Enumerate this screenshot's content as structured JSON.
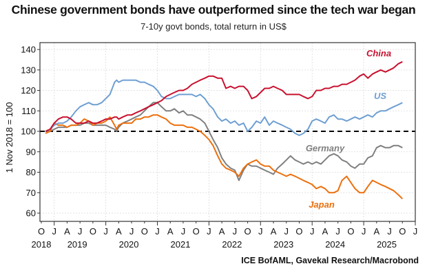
{
  "chart_data": {
    "type": "line",
    "title": "Chinese government bonds have outperformed since the tech war began",
    "subtitle": "7-10y govt bonds, total return in US$",
    "ylabel": "1 Nov 2018 = 100",
    "xlabel": "",
    "source": "ICE BofAML, Gavekal Research/Macrobond",
    "ylim": [
      57,
      143
    ],
    "yticks": [
      60,
      70,
      80,
      90,
      100,
      110,
      120,
      130,
      140
    ],
    "xlim": [
      2018.75,
      2026.0
    ],
    "grid": true,
    "reference_line": {
      "y": 100,
      "style": "dashed",
      "color": "#000000"
    },
    "x_month_ticks": [
      {
        "t": 2018.75,
        "label": "O"
      },
      {
        "t": 2019.0,
        "label": "J"
      },
      {
        "t": 2019.25,
        "label": "A"
      },
      {
        "t": 2019.5,
        "label": "J"
      },
      {
        "t": 2019.75,
        "label": "O"
      },
      {
        "t": 2020.0,
        "label": "J"
      },
      {
        "t": 2020.25,
        "label": "A"
      },
      {
        "t": 2020.5,
        "label": "J"
      },
      {
        "t": 2020.75,
        "label": "O"
      },
      {
        "t": 2021.0,
        "label": "J"
      },
      {
        "t": 2021.25,
        "label": "A"
      },
      {
        "t": 2021.5,
        "label": "J"
      },
      {
        "t": 2021.75,
        "label": "O"
      },
      {
        "t": 2022.0,
        "label": "J"
      },
      {
        "t": 2022.25,
        "label": "A"
      },
      {
        "t": 2022.5,
        "label": "J"
      },
      {
        "t": 2022.75,
        "label": "O"
      },
      {
        "t": 2023.0,
        "label": "J"
      },
      {
        "t": 2023.25,
        "label": "A"
      },
      {
        "t": 2023.5,
        "label": "J"
      },
      {
        "t": 2023.75,
        "label": "O"
      },
      {
        "t": 2024.0,
        "label": "J"
      },
      {
        "t": 2024.25,
        "label": "A"
      },
      {
        "t": 2024.5,
        "label": "J"
      },
      {
        "t": 2024.75,
        "label": "O"
      },
      {
        "t": 2025.0,
        "label": "J"
      },
      {
        "t": 2025.25,
        "label": "A"
      },
      {
        "t": 2025.5,
        "label": "J"
      },
      {
        "t": 2025.75,
        "label": "O"
      },
      {
        "t": 2026.0,
        "label": "J"
      }
    ],
    "x_year_labels": [
      {
        "t": 2018.75,
        "label": "2018"
      },
      {
        "t": 2019.5,
        "label": "2019"
      },
      {
        "t": 2020.5,
        "label": "2020"
      },
      {
        "t": 2021.5,
        "label": "2021"
      },
      {
        "t": 2022.5,
        "label": "2022"
      },
      {
        "t": 2023.5,
        "label": "2023"
      },
      {
        "t": 2024.5,
        "label": "2024"
      },
      {
        "t": 2025.5,
        "label": "2025"
      }
    ],
    "x": [
      2018.83,
      2018.92,
      2019.0,
      2019.08,
      2019.17,
      2019.25,
      2019.33,
      2019.42,
      2019.5,
      2019.58,
      2019.67,
      2019.75,
      2019.83,
      2019.92,
      2020.0,
      2020.08,
      2020.17,
      2020.21,
      2020.25,
      2020.33,
      2020.42,
      2020.5,
      2020.58,
      2020.67,
      2020.75,
      2020.83,
      2020.92,
      2021.0,
      2021.08,
      2021.17,
      2021.25,
      2021.33,
      2021.42,
      2021.5,
      2021.58,
      2021.67,
      2021.75,
      2021.83,
      2021.92,
      2022.0,
      2022.08,
      2022.17,
      2022.25,
      2022.33,
      2022.42,
      2022.5,
      2022.58,
      2022.67,
      2022.75,
      2022.83,
      2022.92,
      2023.0,
      2023.08,
      2023.17,
      2023.25,
      2023.33,
      2023.42,
      2023.5,
      2023.58,
      2023.67,
      2023.75,
      2023.83,
      2023.92,
      2024.0,
      2024.08,
      2024.17,
      2024.25,
      2024.33,
      2024.42,
      2024.5,
      2024.58,
      2024.67,
      2024.75,
      2024.83,
      2024.92,
      2025.0,
      2025.08,
      2025.17,
      2025.25,
      2025.33,
      2025.42,
      2025.5,
      2025.58,
      2025.67,
      2025.75,
      2025.83
    ],
    "series": [
      {
        "name": "China",
        "color": "#c8102e",
        "values": [
          100,
          101,
          104,
          106,
          107,
          107,
          106,
          104,
          104,
          104,
          105,
          104,
          104,
          105,
          106,
          106,
          107,
          107,
          106,
          107,
          108,
          108,
          109,
          110,
          111,
          112,
          113,
          114,
          115,
          117,
          118,
          119,
          120,
          120,
          121,
          123,
          124,
          125,
          126,
          127,
          127,
          126,
          126,
          121,
          122,
          121,
          122,
          122,
          120,
          116,
          117,
          119,
          121,
          121,
          122,
          121,
          120,
          118,
          118,
          118,
          118,
          117,
          116,
          117,
          120,
          120,
          121,
          121,
          122,
          122,
          123,
          123,
          124,
          125,
          127,
          128,
          126,
          128,
          129,
          130,
          129,
          130,
          131,
          133,
          134
        ]
      },
      {
        "name": "US",
        "color": "#6e9fd2",
        "values": [
          100,
          101,
          103,
          104,
          104,
          105,
          107,
          110,
          112,
          113,
          114,
          113,
          113,
          114,
          116,
          118,
          124,
          125,
          124,
          125,
          125,
          125,
          125,
          124,
          124,
          123,
          122,
          120,
          117,
          116,
          116,
          117,
          118,
          118,
          118,
          118,
          117,
          118,
          116,
          113,
          111,
          107,
          105,
          106,
          104,
          105,
          103,
          104,
          100,
          102,
          105,
          104,
          107,
          103,
          105,
          104,
          103,
          102,
          101,
          99,
          98,
          99,
          101,
          105,
          106,
          105,
          104,
          107,
          108,
          106,
          106,
          105,
          106,
          107,
          106,
          107,
          108,
          107,
          109,
          110,
          110,
          111,
          112,
          113,
          114
        ]
      },
      {
        "name": "Germany",
        "color": "#7f7f7f",
        "values": [
          100,
          100,
          101,
          102,
          102,
          102,
          103,
          103,
          103,
          104,
          104,
          103,
          103,
          103,
          103,
          102,
          101,
          100,
          102,
          104,
          105,
          106,
          107,
          108,
          110,
          112,
          114,
          114,
          112,
          110,
          110,
          111,
          109,
          110,
          108,
          108,
          107,
          106,
          104,
          100,
          96,
          92,
          87,
          84,
          82,
          81,
          76,
          81,
          84,
          83,
          83,
          82,
          81,
          80,
          79,
          82,
          84,
          86,
          88,
          86,
          85,
          84,
          85,
          84,
          85,
          84,
          86,
          88,
          89,
          88,
          86,
          85,
          83,
          82,
          84,
          84,
          87,
          88,
          92,
          93,
          92,
          92,
          93,
          93,
          92
        ]
      },
      {
        "name": "Japan",
        "color": "#ed6f0c",
        "values": [
          99,
          100,
          104,
          103,
          103,
          102,
          103,
          103,
          104,
          106,
          105,
          103,
          104,
          104,
          105,
          107,
          103,
          101,
          103,
          104,
          104,
          104,
          106,
          106,
          107,
          107,
          108,
          108,
          107,
          106,
          104,
          103,
          103,
          103,
          102,
          102,
          101,
          100,
          98,
          96,
          93,
          88,
          84,
          82,
          81,
          80,
          78,
          82,
          84,
          85,
          86,
          84,
          83,
          83,
          81,
          80,
          79,
          78,
          79,
          78,
          77,
          76,
          75,
          74,
          72,
          73,
          72,
          70,
          70,
          71,
          76,
          78,
          75,
          72,
          70,
          70,
          73,
          76,
          75,
          74,
          73,
          72,
          71,
          69,
          67
        ]
      }
    ],
    "series_labels": [
      {
        "series": "China",
        "text": "China",
        "color": "#c8102e"
      },
      {
        "series": "US",
        "text": "US",
        "color": "#6e9fd2"
      },
      {
        "series": "Germany",
        "text": "Germany",
        "color": "#7f7f7f"
      },
      {
        "series": "Japan",
        "text": "Japan",
        "color": "#ed6f0c"
      }
    ]
  }
}
